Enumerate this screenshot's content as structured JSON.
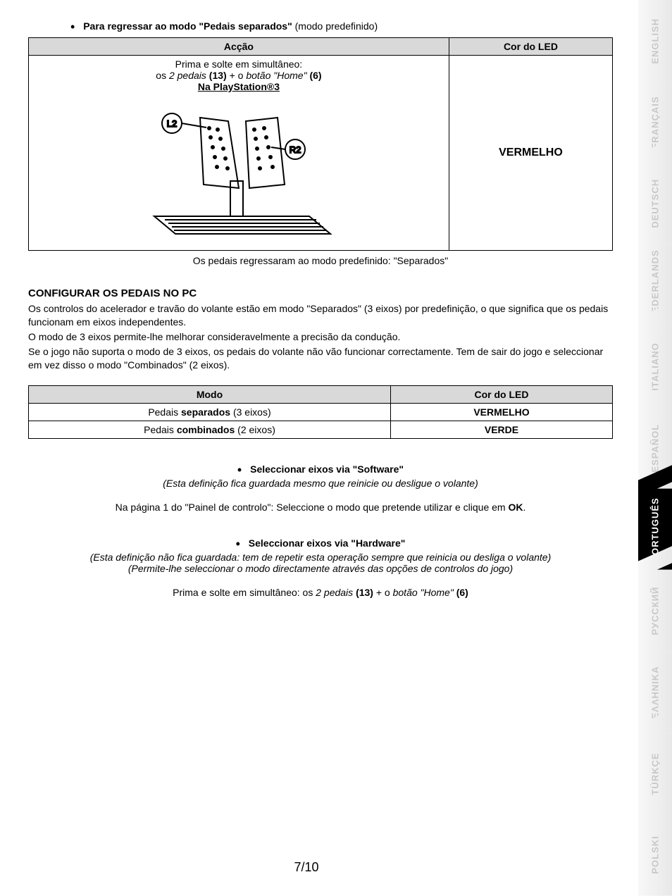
{
  "sideTabs": [
    {
      "label": "ENGLISH",
      "active": false
    },
    {
      "label": "FRANÇAIS",
      "active": false
    },
    {
      "label": "DEUTSCH",
      "active": false
    },
    {
      "label": "NEDERLANDS",
      "active": false
    },
    {
      "label": "ITALIANO",
      "active": false
    },
    {
      "label": "ESPAÑOL",
      "active": false
    },
    {
      "label": "PORTUGUÊS",
      "active": true
    },
    {
      "label": "РУССКИЙ",
      "active": false
    },
    {
      "label": "ΕΛΛΗΝΙΚΑ",
      "active": false
    },
    {
      "label": "TÜRKÇE",
      "active": false
    },
    {
      "label": "POLSKI",
      "active": false
    }
  ],
  "bulletHeading1_prefix": "Para regressar ao modo \"Pedais separados\" ",
  "bulletHeading1_suffix": "(modo predefinido)",
  "table1": {
    "header_left": "Acção",
    "header_right": "Cor do LED",
    "line1": "Prima e solte em simultâneo:",
    "line2_prefix": "os ",
    "line2_italic": "2 pedais ",
    "line2_bold1": "(13)",
    "line2_mid": " + o ",
    "line2_italic2": "botão  \"Home\" ",
    "line2_bold2": "(6)",
    "line3": "Na PlayStation®3",
    "right_value": "VERMELHO"
  },
  "caption1": "Os pedais regressaram ao modo predefinido: \"Separados\"",
  "sectionHeading": "CONFIGURAR OS PEDAIS NO PC",
  "para1": "Os controlos do acelerador e travão do volante estão em modo \"Separados\" (3 eixos) por predefinição, o que significa que os pedais funcionam em eixos independentes.",
  "para2": "O modo de 3 eixos permite-lhe melhorar consideravelmente a precisão da condução.",
  "para3": "Se o jogo não suporta o modo de 3 eixos, os pedais do volante não vão funcionar correctamente. Tem de sair do jogo e seleccionar em vez disso o modo \"Combinados\" (2 eixos).",
  "table2": {
    "header_left": "Modo",
    "header_right": "Cor do LED",
    "row1_left_pre": "Pedais ",
    "row1_left_bold": "separados",
    "row1_left_post": " (3 eixos)",
    "row1_right": "VERMELHO",
    "row2_left_pre": "Pedais ",
    "row2_left_bold": "combinados",
    "row2_left_post": " (2 eixos)",
    "row2_right": "VERDE"
  },
  "softwareHeading": "Seleccionar eixos via \"Software\"",
  "softwareItalic": "(Esta definição fica guardada mesmo que reinicie ou desligue o volante)",
  "softwareLine_pre": "Na página 1 do \"Painel de controlo\": Seleccione o modo que pretende utilizar e clique em ",
  "softwareLine_bold": "OK",
  "softwareLine_post": ".",
  "hardwareHeading": "Seleccionar eixos via \"Hardware\"",
  "hardwareItalic1": "(Esta definição não fica guardada: tem de repetir esta operação sempre que reinicia ou desliga o volante)",
  "hardwareItalic2": "(Permite-lhe seleccionar o modo directamente através das opções de controlos do jogo)",
  "hardwareLine_pre": "Prima e solte em simultâneo: os ",
  "hardwareLine_i1": "2 pedais ",
  "hardwareLine_b1": "(13)",
  "hardwareLine_mid": " + o ",
  "hardwareLine_i2": "botão \"Home\" ",
  "hardwareLine_b2": "(6)",
  "pageNumber": "7/10",
  "colors": {
    "header_bg": "#d9d9d9",
    "border": "#000000",
    "tab_inactive_text": "#c8c8c8",
    "tab_active_bg": "#000000",
    "tab_active_text": "#ffffff"
  }
}
